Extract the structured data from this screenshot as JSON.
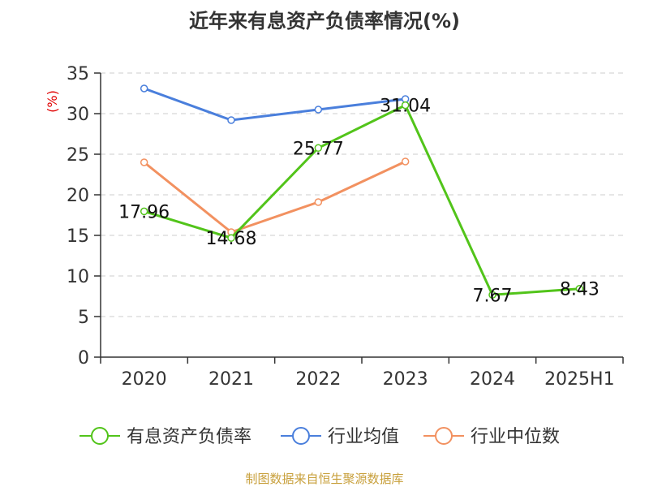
{
  "title": "近年来有息资产负债率情况(%)",
  "source": "制图数据来自恒生聚源数据库",
  "chart_data": {
    "type": "line",
    "title": "近年来有息资产负债率情况(%)",
    "ylabel": "(%)",
    "categories": [
      "2020",
      "2021",
      "2022",
      "2023",
      "2024",
      "2025H1"
    ],
    "ylim": [
      0,
      35
    ],
    "yticks": [
      "0",
      "5",
      "10",
      "15",
      "20",
      "25",
      "30",
      "35"
    ],
    "grid": "horizontal dashed",
    "legend_position": "bottom",
    "series": [
      {
        "name": "有息资产负债率",
        "color": "#52c41a",
        "values": [
          17.96,
          14.68,
          25.77,
          31.04,
          7.67,
          8.43
        ],
        "labels": [
          "17.96",
          "14.68",
          "25.77",
          "31.04",
          "7.67",
          "8.43"
        ]
      },
      {
        "name": "行业均值",
        "color": "#4a7fdc",
        "values": [
          33.1,
          29.2,
          30.5,
          31.8,
          null,
          null
        ]
      },
      {
        "name": "行业中位数",
        "color": "#f29160",
        "values": [
          24.0,
          15.4,
          19.1,
          24.1,
          null,
          null
        ]
      }
    ]
  }
}
